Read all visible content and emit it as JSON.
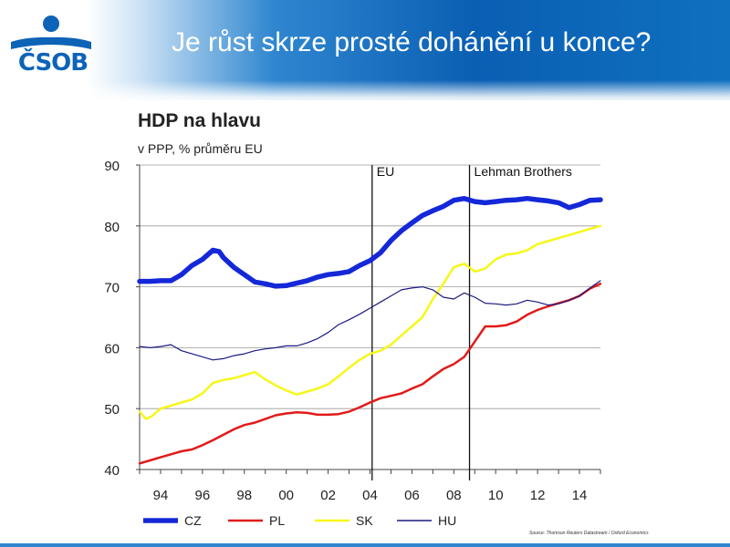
{
  "slide": {
    "title": "Je růst skrze prosté dohánění u konce?",
    "logo_text": "ČSOB"
  },
  "colors": {
    "header_blue": "#0a5fb3",
    "logo_blue": "#0d63b7",
    "cz": "#1428d8",
    "pl": "#e21a1a",
    "sk": "#f7f719",
    "hu": "#1a1a80"
  },
  "source_note": "Source: Thomson Reuters Datastream / Oxford Economics",
  "chart_data": {
    "type": "line",
    "title": "HDP na hlavu",
    "subtitle": "v PPP, % průměru EU",
    "xlabel": "",
    "ylabel": "",
    "xlim": [
      1993,
      2015
    ],
    "ylim": [
      40,
      90
    ],
    "yticks": [
      40,
      50,
      60,
      70,
      80,
      90
    ],
    "xticks": [
      "94",
      "96",
      "98",
      "00",
      "02",
      "04",
      "06",
      "08",
      "10",
      "12",
      "14"
    ],
    "xtick_years": [
      1994,
      1996,
      1998,
      2000,
      2002,
      2004,
      2006,
      2008,
      2010,
      2012,
      2014
    ],
    "grid": "horizontal",
    "legend_position": "bottom",
    "annotations": [
      {
        "label": "EU",
        "x": 2004.1
      },
      {
        "label": "Lehman Brothers",
        "x": 2008.75
      }
    ],
    "series": [
      {
        "name": "CZ",
        "color_key": "cz",
        "width": 5.5,
        "x": [
          1993,
          1993.5,
          1994,
          1994.5,
          1995,
          1995.5,
          1996,
          1996.5,
          1996.8,
          1997,
          1997.5,
          1998,
          1998.5,
          1999,
          1999.5,
          2000,
          2000.5,
          2001,
          2001.5,
          2002,
          2002.5,
          2003,
          2003.5,
          2004,
          2004.5,
          2005,
          2005.5,
          2006,
          2006.5,
          2007,
          2007.5,
          2008,
          2008.5,
          2009,
          2009.5,
          2010,
          2010.5,
          2011,
          2011.5,
          2012,
          2012.5,
          2013,
          2013.5,
          2014,
          2014.5,
          2015
        ],
        "values": [
          70.9,
          70.9,
          71.0,
          71.0,
          72.0,
          73.5,
          74.5,
          76.0,
          75.8,
          74.8,
          73.2,
          72.0,
          70.8,
          70.5,
          70.1,
          70.2,
          70.6,
          71.0,
          71.6,
          72.0,
          72.2,
          72.5,
          73.5,
          74.3,
          75.6,
          77.6,
          79.2,
          80.5,
          81.7,
          82.5,
          83.2,
          84.2,
          84.5,
          84.0,
          83.8,
          84.0,
          84.2,
          84.3,
          84.5,
          84.3,
          84.1,
          83.8,
          83.0,
          83.5,
          84.2,
          84.3
        ]
      },
      {
        "name": "PL",
        "color_key": "pl",
        "width": 2.5,
        "x": [
          1993,
          1993.5,
          1994,
          1994.5,
          1995,
          1995.5,
          1996,
          1996.5,
          1997,
          1997.5,
          1998,
          1998.5,
          1999,
          1999.5,
          2000,
          2000.5,
          2001,
          2001.5,
          2002,
          2002.5,
          2003,
          2003.5,
          2004,
          2004.5,
          2005,
          2005.5,
          2006,
          2006.5,
          2007,
          2007.5,
          2008,
          2008.5,
          2009,
          2009.5,
          2010,
          2010.5,
          2011,
          2011.5,
          2012,
          2012.5,
          2013,
          2013.5,
          2014,
          2014.5,
          2015
        ],
        "values": [
          41.0,
          41.5,
          42.0,
          42.5,
          43.0,
          43.3,
          44.0,
          44.8,
          45.7,
          46.6,
          47.3,
          47.7,
          48.3,
          48.9,
          49.2,
          49.4,
          49.3,
          49.0,
          49.0,
          49.1,
          49.5,
          50.2,
          51.0,
          51.7,
          52.1,
          52.5,
          53.3,
          54.0,
          55.3,
          56.5,
          57.3,
          58.5,
          61.0,
          63.5,
          63.5,
          63.7,
          64.3,
          65.4,
          66.2,
          66.8,
          67.3,
          67.8,
          68.5,
          69.7,
          70.5
        ]
      },
      {
        "name": "SK",
        "color_key": "sk",
        "width": 2.5,
        "x": [
          1993,
          1993.3,
          1993.6,
          1994,
          1994.5,
          1995,
          1995.5,
          1996,
          1996.5,
          1997,
          1997.5,
          1998,
          1998.5,
          1999,
          1999.5,
          2000,
          2000.5,
          2001,
          2001.5,
          2002,
          2002.5,
          2003,
          2003.5,
          2004,
          2004.5,
          2005,
          2005.5,
          2006,
          2006.5,
          2007,
          2007.5,
          2008,
          2008.5,
          2009,
          2009.5,
          2010,
          2010.5,
          2011,
          2011.5,
          2012,
          2012.5,
          2013,
          2013.5,
          2014,
          2014.5,
          2015
        ],
        "values": [
          49.5,
          48.3,
          48.8,
          50.0,
          50.5,
          51.0,
          51.5,
          52.5,
          54.2,
          54.7,
          55.0,
          55.5,
          56.0,
          54.8,
          53.8,
          53.0,
          52.3,
          52.8,
          53.3,
          54.0,
          55.3,
          56.7,
          58.0,
          59.0,
          59.5,
          60.5,
          62.0,
          63.5,
          65.0,
          68.0,
          70.5,
          73.2,
          73.8,
          72.5,
          73.0,
          74.5,
          75.3,
          75.5,
          76.0,
          77.0,
          77.5,
          78.0,
          78.5,
          79.0,
          79.5,
          80.0
        ]
      },
      {
        "name": "HU",
        "color_key": "hu",
        "width": 1.2,
        "x": [
          1993,
          1993.5,
          1994,
          1994.5,
          1995,
          1995.5,
          1996,
          1996.5,
          1997,
          1997.5,
          1998,
          1998.5,
          1999,
          1999.5,
          2000,
          2000.5,
          2001,
          2001.5,
          2002,
          2002.5,
          2003,
          2003.5,
          2004,
          2004.5,
          2005,
          2005.5,
          2006,
          2006.5,
          2007,
          2007.5,
          2008,
          2008.5,
          2009,
          2009.5,
          2010,
          2010.5,
          2011,
          2011.5,
          2012,
          2012.5,
          2013,
          2013.5,
          2014,
          2014.5,
          2015
        ],
        "values": [
          60.2,
          60.0,
          60.2,
          60.5,
          59.5,
          59.0,
          58.5,
          58.0,
          58.2,
          58.7,
          59.0,
          59.5,
          59.8,
          60.0,
          60.3,
          60.3,
          60.8,
          61.5,
          62.5,
          63.8,
          64.6,
          65.5,
          66.5,
          67.5,
          68.5,
          69.5,
          69.8,
          70.0,
          69.5,
          68.3,
          68.0,
          69.0,
          68.3,
          67.3,
          67.2,
          67.0,
          67.2,
          67.8,
          67.5,
          67.0,
          67.2,
          67.8,
          68.5,
          69.8,
          71.0
        ]
      }
    ]
  }
}
